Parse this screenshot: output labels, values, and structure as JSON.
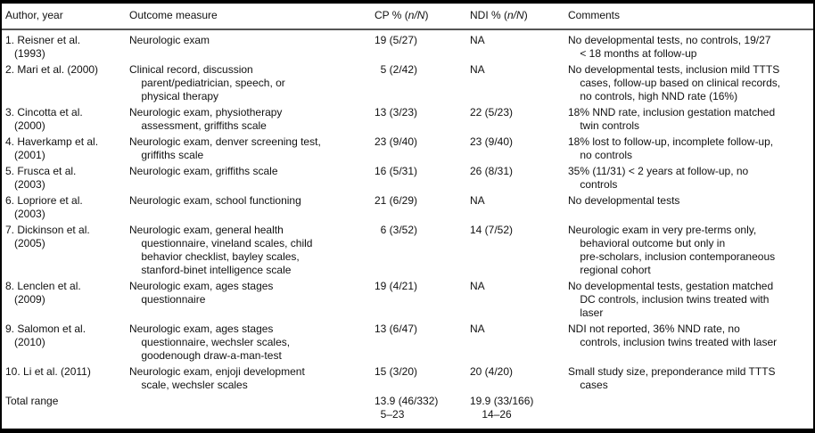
{
  "colors": {
    "frame_border": "#000000",
    "header_rule": "#555555",
    "text": "#111111",
    "background": "#ffffff"
  },
  "table": {
    "headers": {
      "author": "Author, year",
      "outcome": "Outcome measure",
      "cp_pre": "CP % (",
      "cp_italic": "n/N",
      "cp_post": ")",
      "ndi_pre": "NDI % (",
      "ndi_italic": "n/N",
      "ndi_post": ")",
      "comments": "Comments"
    },
    "rows": [
      {
        "author": "1. Reisner et al.\n   (1993)",
        "outcome": "Neurologic exam",
        "cp": "19 (5/27)",
        "ndi": "NA",
        "comments": "No developmental tests, no controls, 19/27\n    < 18 months at follow-up"
      },
      {
        "author": "2. Mari et al. (2000)",
        "outcome": "Clinical record, discussion\n    parent/pediatrician, speech, or\n    physical therapy",
        "cp": "  5 (2/42)",
        "ndi": "NA",
        "comments": "No developmental tests, inclusion mild TTTS\n    cases, follow-up based on clinical records,\n    no controls, high NND rate (16%)"
      },
      {
        "author": "3. Cincotta et al.\n   (2000)",
        "outcome": "Neurologic exam, physiotherapy\n    assessment, griffiths scale",
        "cp": "13 (3/23)",
        "ndi": "22 (5/23)",
        "comments": "18% NND rate, inclusion gestation matched\n    twin controls"
      },
      {
        "author": "4. Haverkamp et al.\n   (2001)",
        "outcome": "Neurologic exam, denver screening test,\n    griffiths scale",
        "cp": "23 (9/40)",
        "ndi": "23 (9/40)",
        "comments": "18% lost to follow-up, incomplete follow-up,\n    no controls"
      },
      {
        "author": "5. Frusca et al.\n   (2003)",
        "outcome": "Neurologic exam, griffiths scale",
        "cp": "16 (5/31)",
        "ndi": "26 (8/31)",
        "comments": "35% (11/31) < 2 years at follow-up, no\n    controls"
      },
      {
        "author": "6. Lopriore et al.\n   (2003)",
        "outcome": "Neurologic exam, school functioning",
        "cp": "21 (6/29)",
        "ndi": "NA",
        "comments": "No developmental tests"
      },
      {
        "author": "7. Dickinson et al.\n   (2005)",
        "outcome": "Neurologic exam, general health\n    questionnaire, vineland scales, child\n    behavior checklist, bayley scales,\n    stanford-binet intelligence scale",
        "cp": "  6 (3/52)",
        "ndi": "14 (7/52)",
        "comments": "Neurologic exam in very pre-terms only,\n    behavioral outcome but only in\n    pre-scholars, inclusion contemporaneous\n    regional cohort"
      },
      {
        "author": "8. Lenclen et al.\n   (2009)",
        "outcome": "Neurologic exam, ages stages\n    questionnaire",
        "cp": "19 (4/21)",
        "ndi": "NA",
        "comments": "No developmental tests, gestation matched\n    DC controls, inclusion twins treated with\n    laser"
      },
      {
        "author": "9. Salomon et al.\n   (2010)",
        "outcome": "Neurologic exam, ages stages\n    questionnaire, wechsler scales,\n    goodenough draw-a-man-test",
        "cp": "13 (6/47)",
        "ndi": "NA",
        "comments": "NDI not reported, 36% NND rate, no\n    controls, inclusion twins treated with laser"
      },
      {
        "author": "10. Li et al. (2011)",
        "outcome": "Neurologic exam, enjoji development\n    scale, wechsler scales",
        "cp": "15 (3/20)",
        "ndi": "20 (4/20)",
        "comments": "Small study size, preponderance mild TTTS\n    cases"
      },
      {
        "author": "Total range",
        "outcome": "",
        "cp": "13.9 (46/332)\n  5–23",
        "ndi": "19.9 (33/166)\n    14–26",
        "comments": ""
      }
    ]
  }
}
